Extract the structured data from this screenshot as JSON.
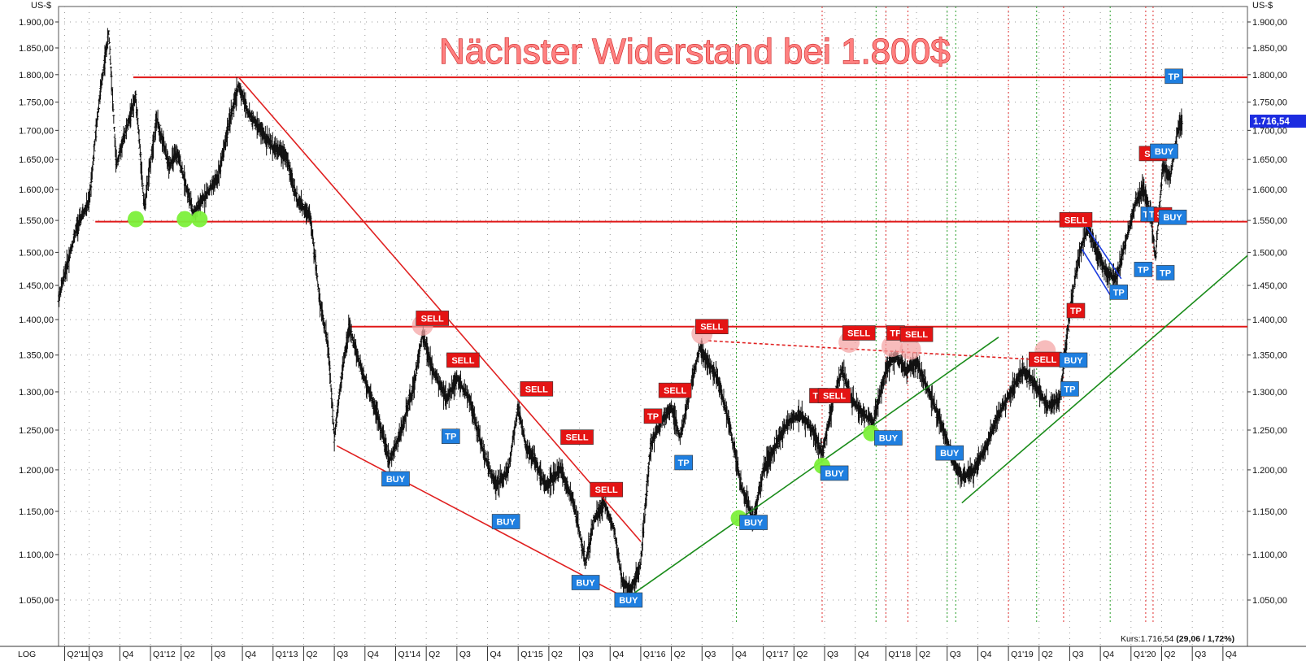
{
  "chart_data": {
    "type": "candlestick",
    "title": "Nächster Widerstand bei 1.800$",
    "ylabel": "US-$",
    "scale": "log",
    "scale_label": "LOG",
    "ylim": [
      1020,
      1940
    ],
    "y_ticks": [
      "1.900,00",
      "1.850,00",
      "1.800,00",
      "1.750,00",
      "1.700,00",
      "1.650,00",
      "1.600,00",
      "1.550,00",
      "1.500,00",
      "1.450,00",
      "1.400,00",
      "1.350,00",
      "1.300,00",
      "1.250,00",
      "1.200,00",
      "1.150,00",
      "1.100,00",
      "1.050,00"
    ],
    "y_tick_values": [
      1900,
      1850,
      1800,
      1750,
      1700,
      1650,
      1600,
      1550,
      1500,
      1450,
      1400,
      1350,
      1300,
      1250,
      1200,
      1150,
      1100,
      1050
    ],
    "x_range": [
      2011.25,
      2020.95
    ],
    "x_ticks": [
      {
        "t": 2011.3,
        "label": "Q2'11"
      },
      {
        "t": 2011.5,
        "label": "Q3"
      },
      {
        "t": 2011.75,
        "label": "Q4"
      },
      {
        "t": 2012.0,
        "label": "Q1'12"
      },
      {
        "t": 2012.25,
        "label": "Q2"
      },
      {
        "t": 2012.5,
        "label": "Q3"
      },
      {
        "t": 2012.75,
        "label": "Q4"
      },
      {
        "t": 2013.0,
        "label": "Q1'13"
      },
      {
        "t": 2013.25,
        "label": "Q2"
      },
      {
        "t": 2013.5,
        "label": "Q3"
      },
      {
        "t": 2013.75,
        "label": "Q4"
      },
      {
        "t": 2014.0,
        "label": "Q1'14"
      },
      {
        "t": 2014.25,
        "label": "Q2"
      },
      {
        "t": 2014.5,
        "label": "Q3"
      },
      {
        "t": 2014.75,
        "label": "Q4"
      },
      {
        "t": 2015.0,
        "label": "Q1'15"
      },
      {
        "t": 2015.25,
        "label": "Q2"
      },
      {
        "t": 2015.5,
        "label": "Q3"
      },
      {
        "t": 2015.75,
        "label": "Q4"
      },
      {
        "t": 2016.0,
        "label": "Q1'16"
      },
      {
        "t": 2016.25,
        "label": "Q2"
      },
      {
        "t": 2016.5,
        "label": "Q3"
      },
      {
        "t": 2016.75,
        "label": "Q4"
      },
      {
        "t": 2017.0,
        "label": "Q1'17"
      },
      {
        "t": 2017.25,
        "label": "Q2"
      },
      {
        "t": 2017.5,
        "label": "Q3"
      },
      {
        "t": 2017.75,
        "label": "Q4"
      },
      {
        "t": 2018.0,
        "label": "Q1'18"
      },
      {
        "t": 2018.25,
        "label": "Q2"
      },
      {
        "t": 2018.5,
        "label": "Q3"
      },
      {
        "t": 2018.75,
        "label": "Q4"
      },
      {
        "t": 2019.0,
        "label": "Q1'19"
      },
      {
        "t": 2019.25,
        "label": "Q2"
      },
      {
        "t": 2019.5,
        "label": "Q3"
      },
      {
        "t": 2019.75,
        "label": "Q4"
      },
      {
        "t": 2020.0,
        "label": "Q1'20"
      },
      {
        "t": 2020.25,
        "label": "Q2"
      },
      {
        "t": 2020.5,
        "label": "Q3"
      },
      {
        "t": 2020.75,
        "label": "Q4"
      }
    ],
    "price_path": [
      [
        2011.25,
        1430
      ],
      [
        2011.4,
        1540
      ],
      [
        2011.5,
        1580
      ],
      [
        2011.58,
        1750
      ],
      [
        2011.66,
        1880
      ],
      [
        2011.72,
        1640
      ],
      [
        2011.8,
        1700
      ],
      [
        2011.88,
        1760
      ],
      [
        2011.95,
        1570
      ],
      [
        2012.05,
        1720
      ],
      [
        2012.15,
        1640
      ],
      [
        2012.22,
        1660
      ],
      [
        2012.35,
        1560
      ],
      [
        2012.45,
        1590
      ],
      [
        2012.55,
        1620
      ],
      [
        2012.65,
        1720
      ],
      [
        2012.72,
        1780
      ],
      [
        2012.8,
        1730
      ],
      [
        2012.9,
        1700
      ],
      [
        2013.0,
        1670
      ],
      [
        2013.1,
        1660
      ],
      [
        2013.2,
        1580
      ],
      [
        2013.3,
        1560
      ],
      [
        2013.38,
        1430
      ],
      [
        2013.45,
        1360
      ],
      [
        2013.5,
        1240
      ],
      [
        2013.55,
        1310
      ],
      [
        2013.62,
        1390
      ],
      [
        2013.72,
        1330
      ],
      [
        2013.85,
        1270
      ],
      [
        2013.95,
        1210
      ],
      [
        2014.05,
        1250
      ],
      [
        2014.15,
        1310
      ],
      [
        2014.22,
        1380
      ],
      [
        2014.3,
        1330
      ],
      [
        2014.42,
        1290
      ],
      [
        2014.5,
        1320
      ],
      [
        2014.6,
        1290
      ],
      [
        2014.72,
        1220
      ],
      [
        2014.82,
        1180
      ],
      [
        2014.92,
        1200
      ],
      [
        2015.0,
        1280
      ],
      [
        2015.06,
        1230
      ],
      [
        2015.14,
        1210
      ],
      [
        2015.22,
        1180
      ],
      [
        2015.35,
        1200
      ],
      [
        2015.45,
        1160
      ],
      [
        2015.55,
        1090
      ],
      [
        2015.62,
        1140
      ],
      [
        2015.7,
        1160
      ],
      [
        2015.78,
        1130
      ],
      [
        2015.85,
        1070
      ],
      [
        2015.92,
        1060
      ],
      [
        2016.0,
        1090
      ],
      [
        2016.08,
        1230
      ],
      [
        2016.16,
        1260
      ],
      [
        2016.25,
        1280
      ],
      [
        2016.32,
        1240
      ],
      [
        2016.4,
        1300
      ],
      [
        2016.48,
        1360
      ],
      [
        2016.55,
        1340
      ],
      [
        2016.62,
        1320
      ],
      [
        2016.72,
        1260
      ],
      [
        2016.82,
        1180
      ],
      [
        2016.92,
        1140
      ],
      [
        2017.0,
        1200
      ],
      [
        2017.1,
        1230
      ],
      [
        2017.2,
        1260
      ],
      [
        2017.3,
        1270
      ],
      [
        2017.4,
        1250
      ],
      [
        2017.48,
        1220
      ],
      [
        2017.56,
        1280
      ],
      [
        2017.64,
        1330
      ],
      [
        2017.72,
        1290
      ],
      [
        2017.82,
        1270
      ],
      [
        2017.9,
        1260
      ],
      [
        2018.0,
        1330
      ],
      [
        2018.08,
        1350
      ],
      [
        2018.16,
        1330
      ],
      [
        2018.25,
        1340
      ],
      [
        2018.35,
        1300
      ],
      [
        2018.45,
        1260
      ],
      [
        2018.55,
        1210
      ],
      [
        2018.62,
        1190
      ],
      [
        2018.72,
        1200
      ],
      [
        2018.82,
        1230
      ],
      [
        2018.92,
        1270
      ],
      [
        2019.02,
        1300
      ],
      [
        2019.12,
        1330
      ],
      [
        2019.22,
        1310
      ],
      [
        2019.32,
        1280
      ],
      [
        2019.42,
        1290
      ],
      [
        2019.5,
        1410
      ],
      [
        2019.58,
        1500
      ],
      [
        2019.65,
        1540
      ],
      [
        2019.72,
        1500
      ],
      [
        2019.8,
        1470
      ],
      [
        2019.88,
        1460
      ],
      [
        2019.96,
        1520
      ],
      [
        2020.04,
        1580
      ],
      [
        2020.1,
        1600
      ],
      [
        2020.16,
        1560
      ],
      [
        2020.2,
        1490
      ],
      [
        2020.26,
        1640
      ],
      [
        2020.32,
        1620
      ],
      [
        2020.38,
        1700
      ],
      [
        2020.42,
        1716.54
      ]
    ],
    "horizontal_lines": [
      {
        "value": 1795,
        "t_start": 2011.86,
        "t_end": 2020.95
      },
      {
        "value": 1548,
        "t_start": 2011.55,
        "t_end": 2020.95
      },
      {
        "value": 1390,
        "t_start": 2013.62,
        "t_end": 2020.95
      }
    ],
    "trendlines": [
      {
        "color": "#e02020",
        "dash": false,
        "points": [
          [
            2012.72,
            1795
          ],
          [
            2016.0,
            1115
          ]
        ]
      },
      {
        "color": "#e02020",
        "dash": false,
        "points": [
          [
            2013.52,
            1230
          ],
          [
            2015.88,
            1052
          ]
        ]
      },
      {
        "color": "#e02020",
        "dash": true,
        "points": [
          [
            2016.55,
            1370
          ],
          [
            2019.4,
            1342
          ]
        ]
      },
      {
        "color": "#1a8c1a",
        "dash": false,
        "points": [
          [
            2015.92,
            1055
          ],
          [
            2018.92,
            1375
          ]
        ]
      },
      {
        "color": "#1a8c1a",
        "dash": false,
        "points": [
          [
            2018.62,
            1160
          ],
          [
            2020.95,
            1495
          ]
        ]
      },
      {
        "color": "#1c3ce0",
        "dash": false,
        "points": [
          [
            2019.6,
            1550
          ],
          [
            2019.92,
            1460
          ]
        ]
      },
      {
        "color": "#1c3ce0",
        "dash": false,
        "points": [
          [
            2019.6,
            1505
          ],
          [
            2019.85,
            1430
          ]
        ]
      }
    ],
    "vertical_lines": [
      {
        "t": 2016.78,
        "color": "#2aa02a"
      },
      {
        "t": 2017.48,
        "color": "#e03030"
      },
      {
        "t": 2017.92,
        "color": "#2aa02a"
      },
      {
        "t": 2018.0,
        "color": "#e03030"
      },
      {
        "t": 2018.18,
        "color": "#e03030"
      },
      {
        "t": 2018.5,
        "color": "#2aa02a"
      },
      {
        "t": 2018.57,
        "color": "#2aa02a"
      },
      {
        "t": 2019.0,
        "color": "#e03030"
      },
      {
        "t": 2019.23,
        "color": "#2aa02a"
      },
      {
        "t": 2019.45,
        "color": "#e03030"
      },
      {
        "t": 2019.83,
        "color": "#2aa02a"
      },
      {
        "t": 2020.12,
        "color": "#e03030"
      },
      {
        "t": 2020.18,
        "color": "#e03030"
      }
    ],
    "circles": [
      {
        "t": 2011.88,
        "value": 1552,
        "color": "green"
      },
      {
        "t": 2012.28,
        "value": 1552,
        "color": "green"
      },
      {
        "t": 2012.4,
        "value": 1552,
        "color": "green"
      },
      {
        "t": 2014.22,
        "value": 1392,
        "color": "red"
      },
      {
        "t": 2016.5,
        "value": 1380,
        "color": "red"
      },
      {
        "t": 2016.8,
        "value": 1142,
        "color": "green"
      },
      {
        "t": 2017.48,
        "value": 1205,
        "color": "green"
      },
      {
        "t": 2017.7,
        "value": 1368,
        "color": "red"
      },
      {
        "t": 2017.88,
        "value": 1246,
        "color": "green"
      },
      {
        "t": 2018.05,
        "value": 1362,
        "color": "red"
      },
      {
        "t": 2018.2,
        "value": 1358,
        "color": "red"
      },
      {
        "t": 2019.3,
        "value": 1356,
        "color": "red"
      }
    ],
    "signals": [
      {
        "label": "SELL",
        "t": 2014.3,
        "value": 1402,
        "color": "red"
      },
      {
        "label": "SELL",
        "t": 2014.55,
        "value": 1343,
        "color": "red"
      },
      {
        "label": "TP",
        "t": 2014.45,
        "value": 1242,
        "color": "blue"
      },
      {
        "label": "BUY",
        "t": 2014.0,
        "value": 1189,
        "color": "blue"
      },
      {
        "label": "SELL",
        "t": 2015.15,
        "value": 1304,
        "color": "red"
      },
      {
        "label": "BUY",
        "t": 2014.9,
        "value": 1138,
        "color": "blue"
      },
      {
        "label": "SELL",
        "t": 2015.48,
        "value": 1241,
        "color": "red"
      },
      {
        "label": "SELL",
        "t": 2015.72,
        "value": 1176,
        "color": "red"
      },
      {
        "label": "BUY",
        "t": 2015.55,
        "value": 1069,
        "color": "blue"
      },
      {
        "label": "BUY",
        "t": 2015.9,
        "value": 1050,
        "color": "blue"
      },
      {
        "label": "TP",
        "t": 2016.1,
        "value": 1268,
        "color": "red"
      },
      {
        "label": "SELL",
        "t": 2016.28,
        "value": 1302,
        "color": "red"
      },
      {
        "label": "TP",
        "t": 2016.35,
        "value": 1209,
        "color": "blue"
      },
      {
        "label": "SELL",
        "t": 2016.58,
        "value": 1390,
        "color": "red"
      },
      {
        "label": "BUY",
        "t": 2016.92,
        "value": 1137,
        "color": "blue"
      },
      {
        "label": "TP",
        "t": 2017.45,
        "value": 1295,
        "color": "red"
      },
      {
        "label": "SELL",
        "t": 2017.58,
        "value": 1295,
        "color": "red"
      },
      {
        "label": "BUY",
        "t": 2017.58,
        "value": 1196,
        "color": "blue"
      },
      {
        "label": "SELL",
        "t": 2017.78,
        "value": 1381,
        "color": "red"
      },
      {
        "label": "BUY",
        "t": 2018.02,
        "value": 1240,
        "color": "blue"
      },
      {
        "label": "TP",
        "t": 2018.08,
        "value": 1381,
        "color": "red"
      },
      {
        "label": "SELL",
        "t": 2018.25,
        "value": 1379,
        "color": "red"
      },
      {
        "label": "BUY",
        "t": 2018.52,
        "value": 1221,
        "color": "blue"
      },
      {
        "label": "SELL",
        "t": 2019.3,
        "value": 1344,
        "color": "red"
      },
      {
        "label": "TP",
        "t": 2019.5,
        "value": 1304,
        "color": "blue"
      },
      {
        "label": "BUY",
        "t": 2019.53,
        "value": 1343,
        "color": "blue"
      },
      {
        "label": "TP",
        "t": 2019.55,
        "value": 1413,
        "color": "red"
      },
      {
        "label": "SELL",
        "t": 2019.55,
        "value": 1551,
        "color": "red"
      },
      {
        "label": "TP",
        "t": 2019.9,
        "value": 1440,
        "color": "blue"
      },
      {
        "label": "TP",
        "t": 2020.1,
        "value": 1474,
        "color": "blue"
      },
      {
        "label": "T",
        "t": 2020.12,
        "value": 1560,
        "color": "blue"
      },
      {
        "label": "T",
        "t": 2020.17,
        "value": 1560,
        "color": "blue"
      },
      {
        "label": "SEL",
        "t": 2020.18,
        "value": 1660,
        "color": "red"
      },
      {
        "label": "BUY",
        "t": 2020.27,
        "value": 1664,
        "color": "blue"
      },
      {
        "label": "SE",
        "t": 2020.26,
        "value": 1559,
        "color": "red"
      },
      {
        "label": "BUY",
        "t": 2020.34,
        "value": 1555,
        "color": "blue"
      },
      {
        "label": "TP",
        "t": 2020.28,
        "value": 1469,
        "color": "blue"
      },
      {
        "label": "TP",
        "t": 2020.35,
        "value": 1797,
        "color": "blue"
      }
    ],
    "last_price": 1716.54,
    "last_price_label": "1.716,54",
    "status_text": "Kurs:1.716,54 ",
    "status_change": "(29,06 / 1,72%)"
  }
}
